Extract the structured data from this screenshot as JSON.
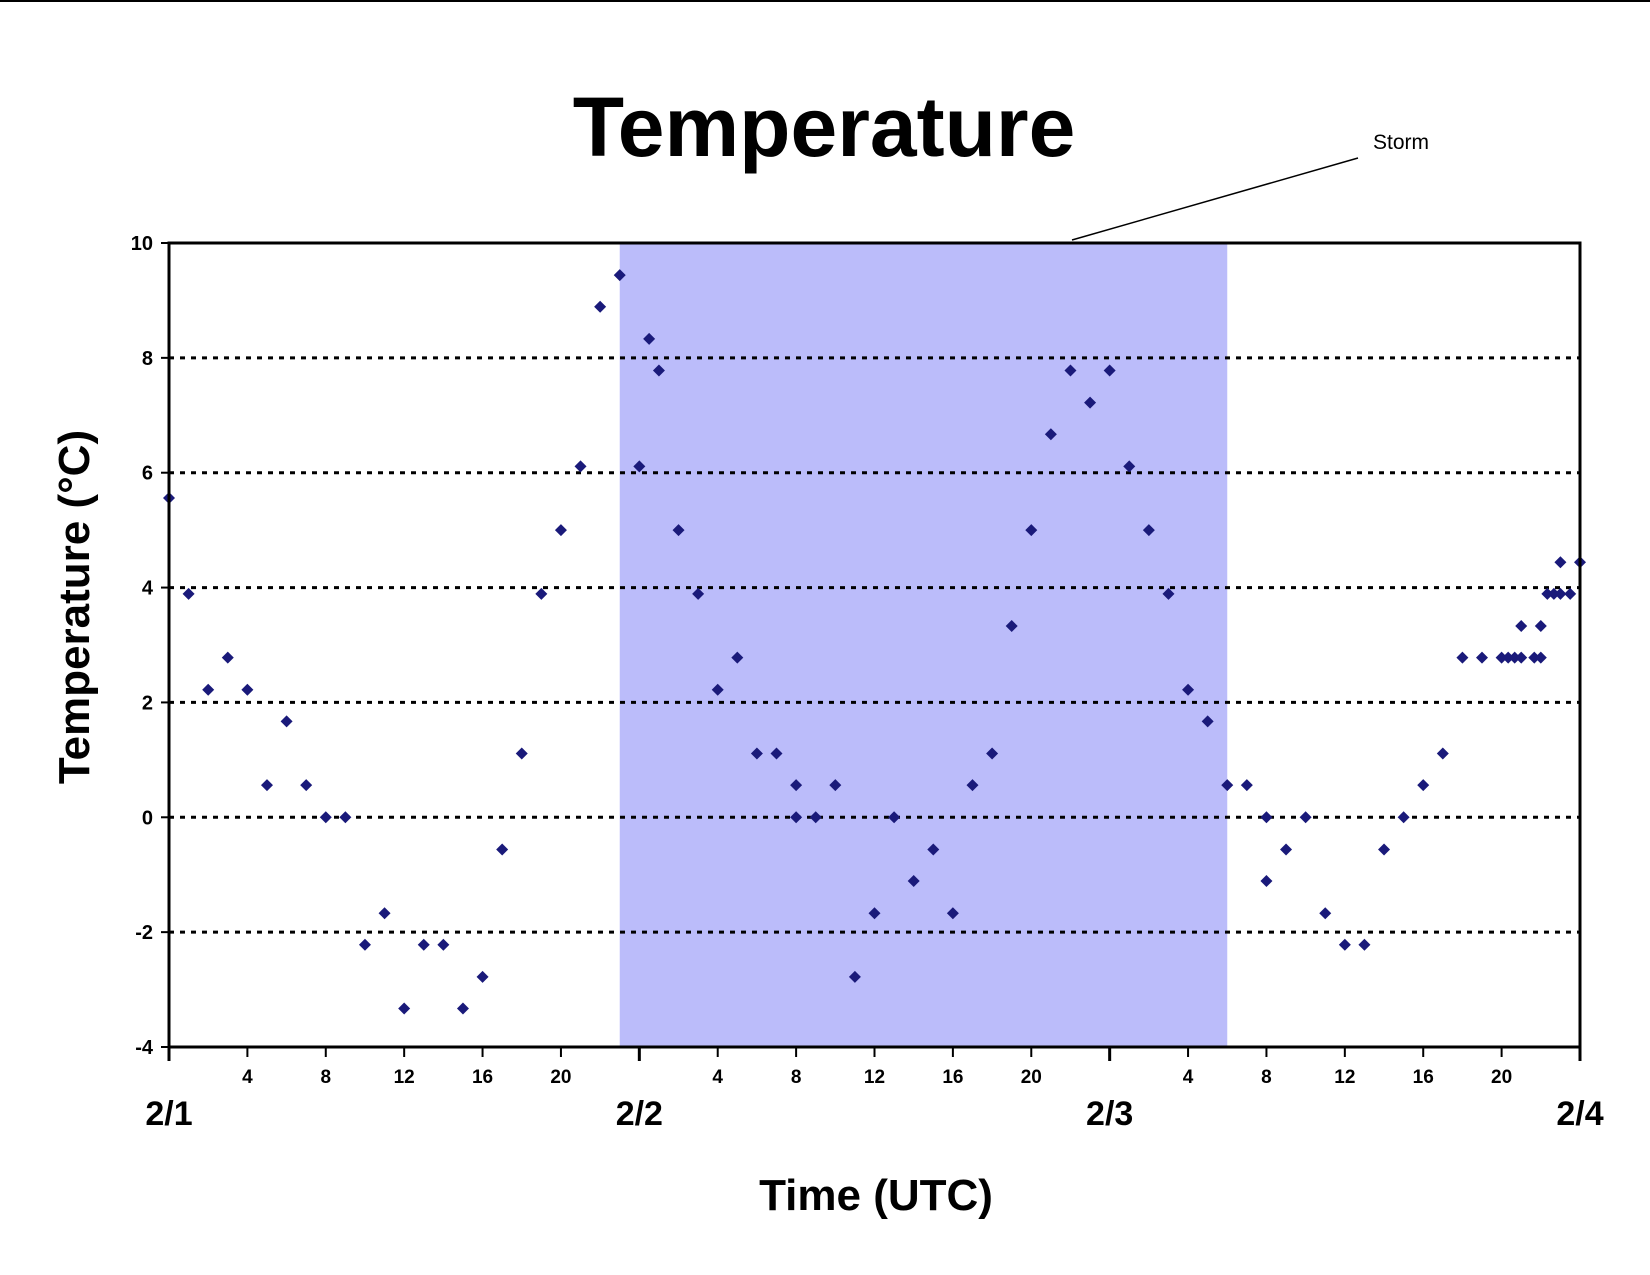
{
  "chart_data": {
    "type": "scatter",
    "title": "Temperature",
    "xlabel": "Time (UTC)",
    "ylabel": "Temperature (°C)",
    "ylim": [
      -4,
      10
    ],
    "y_ticks": [
      -4,
      -2,
      0,
      2,
      4,
      6,
      8,
      10
    ],
    "xlim": [
      "2/1 00:00",
      "2/4 00:00"
    ],
    "x_hour_ticks": [
      {
        "day": "2/1",
        "hours": [
          4,
          8,
          12,
          16,
          20
        ]
      },
      {
        "day": "2/2",
        "hours": [
          4,
          8,
          12,
          16,
          20
        ]
      },
      {
        "day": "2/3",
        "hours": [
          4,
          8,
          12,
          16,
          20
        ]
      }
    ],
    "day_labels": [
      "2/1",
      "2/2",
      "2/3",
      "2/4"
    ],
    "grid": "horizontal dotted",
    "shaded_region": {
      "label": "Storm",
      "start": "2/1 23:00",
      "end": "2/3 06:00",
      "color": "#bbbcfa"
    },
    "marker_color": "#1a1a7a",
    "points": [
      [
        "2/1 00:00",
        5.56
      ],
      [
        "2/1 01:00",
        3.89
      ],
      [
        "2/1 02:00",
        2.22
      ],
      [
        "2/1 03:00",
        2.78
      ],
      [
        "2/1 04:00",
        2.22
      ],
      [
        "2/1 05:00",
        0.56
      ],
      [
        "2/1 06:00",
        1.67
      ],
      [
        "2/1 07:00",
        0.56
      ],
      [
        "2/1 08:00",
        0.0
      ],
      [
        "2/1 09:00",
        0.0
      ],
      [
        "2/1 10:00",
        -2.22
      ],
      [
        "2/1 11:00",
        -1.67
      ],
      [
        "2/1 12:00",
        -3.33
      ],
      [
        "2/1 13:00",
        -2.22
      ],
      [
        "2/1 14:00",
        -2.22
      ],
      [
        "2/1 15:00",
        -3.33
      ],
      [
        "2/1 16:00",
        -2.78
      ],
      [
        "2/1 17:00",
        -0.56
      ],
      [
        "2/1 18:00",
        1.11
      ],
      [
        "2/1 19:00",
        3.89
      ],
      [
        "2/1 20:00",
        5.0
      ],
      [
        "2/1 21:00",
        6.11
      ],
      [
        "2/1 22:00",
        8.89
      ],
      [
        "2/1 23:00",
        9.44
      ],
      [
        "2/2 00:00",
        6.11
      ],
      [
        "2/2 00:30",
        8.33
      ],
      [
        "2/2 01:00",
        7.78
      ],
      [
        "2/2 02:00",
        5.0
      ],
      [
        "2/2 03:00",
        3.89
      ],
      [
        "2/2 04:00",
        2.22
      ],
      [
        "2/2 05:00",
        2.78
      ],
      [
        "2/2 06:00",
        1.11
      ],
      [
        "2/2 07:00",
        1.11
      ],
      [
        "2/2 08:00",
        0.56
      ],
      [
        "2/2 08:00",
        0.0
      ],
      [
        "2/2 09:00",
        0.0
      ],
      [
        "2/2 10:00",
        0.56
      ],
      [
        "2/2 11:00",
        -2.78
      ],
      [
        "2/2 12:00",
        -1.67
      ],
      [
        "2/2 13:00",
        0.0
      ],
      [
        "2/2 14:00",
        -1.11
      ],
      [
        "2/2 15:00",
        -0.56
      ],
      [
        "2/2 16:00",
        -1.67
      ],
      [
        "2/2 17:00",
        0.56
      ],
      [
        "2/2 18:00",
        1.11
      ],
      [
        "2/2 19:00",
        3.33
      ],
      [
        "2/2 20:00",
        5.0
      ],
      [
        "2/2 21:00",
        6.67
      ],
      [
        "2/2 22:00",
        7.78
      ],
      [
        "2/2 23:00",
        7.22
      ],
      [
        "2/3 00:00",
        7.78
      ],
      [
        "2/3 01:00",
        6.11
      ],
      [
        "2/3 02:00",
        5.0
      ],
      [
        "2/3 03:00",
        3.89
      ],
      [
        "2/3 04:00",
        2.22
      ],
      [
        "2/3 05:00",
        1.67
      ],
      [
        "2/3 06:00",
        0.56
      ],
      [
        "2/3 07:00",
        0.56
      ],
      [
        "2/3 08:00",
        0.0
      ],
      [
        "2/3 08:00",
        -1.11
      ],
      [
        "2/3 09:00",
        -0.56
      ],
      [
        "2/3 10:00",
        0.0
      ],
      [
        "2/3 11:00",
        -1.67
      ],
      [
        "2/3 12:00",
        -2.22
      ],
      [
        "2/3 13:00",
        -2.22
      ],
      [
        "2/3 14:00",
        -0.56
      ],
      [
        "2/3 15:00",
        0.0
      ],
      [
        "2/3 16:00",
        0.56
      ],
      [
        "2/3 17:00",
        1.11
      ],
      [
        "2/3 18:00",
        2.78
      ],
      [
        "2/3 19:00",
        2.78
      ],
      [
        "2/3 20:00",
        2.78
      ],
      [
        "2/3 20:20",
        2.78
      ],
      [
        "2/3 20:40",
        2.78
      ],
      [
        "2/3 21:00",
        3.33
      ],
      [
        "2/3 21:00",
        2.78
      ],
      [
        "2/3 21:40",
        2.78
      ],
      [
        "2/3 22:00",
        3.33
      ],
      [
        "2/3 22:00",
        2.78
      ],
      [
        "2/3 22:20",
        3.89
      ],
      [
        "2/3 22:40",
        3.89
      ],
      [
        "2/3 23:00",
        4.44
      ],
      [
        "2/3 23:00",
        3.89
      ],
      [
        "2/3 23:30",
        3.89
      ],
      [
        "2/4 00:00",
        4.44
      ]
    ]
  }
}
